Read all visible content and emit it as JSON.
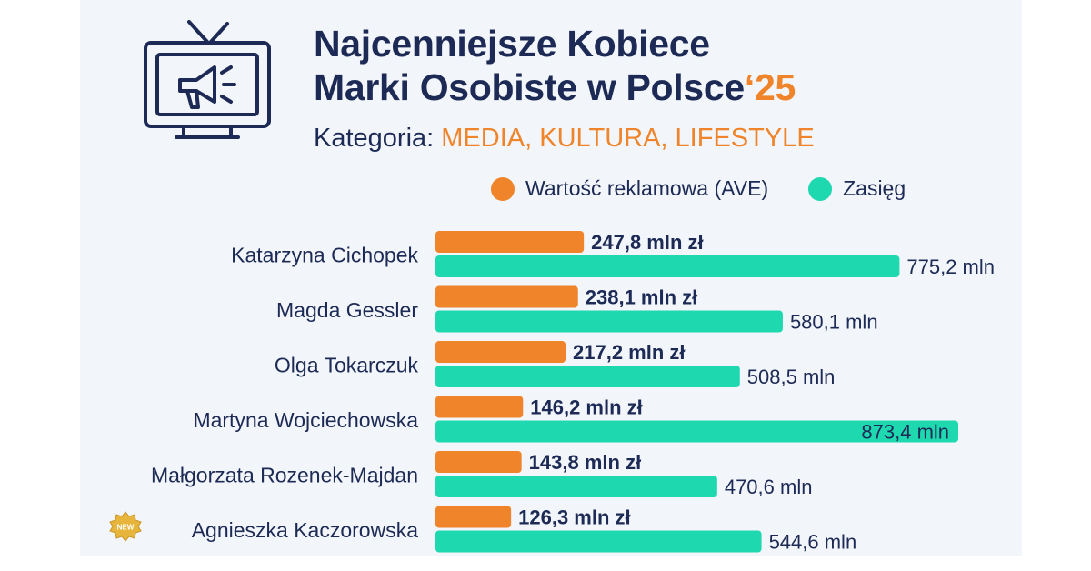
{
  "title": {
    "line1": "Najcenniejsze Kobiece",
    "line2": "Marki Osobiste w Polsce",
    "year": "‘25"
  },
  "subtitle": {
    "label": "Kategoria:",
    "category": "MEDIA, KULTURA, LIFESTYLE"
  },
  "icons": {
    "tv": "tv-megaphone-icon",
    "new_badge": "new-badge-icon"
  },
  "new_badge_text": "NEW",
  "colors": {
    "ave": "#f0842a",
    "reach": "#1ed8b0",
    "text": "#1c2a55",
    "background": "#f2f5f9"
  },
  "chart_data": {
    "type": "bar",
    "orientation": "horizontal",
    "title": "Najcenniejsze Kobiece Marki Osobiste w Polsce‘25",
    "subtitle": "Kategoria: MEDIA, KULTURA, LIFESTYLE",
    "legend_position": "top-right",
    "grid": false,
    "categories": [
      "Katarzyna Cichopek",
      "Magda Gessler",
      "Olga Tokarczuk",
      "Martyna Wojciechowska",
      "Małgorzata Rozenek-Majdan",
      "Agnieszka Kaczorowska"
    ],
    "new_entries": [
      "Agnieszka Kaczorowska"
    ],
    "series": [
      {
        "name": "Wartość reklamowa (AVE)",
        "color": "#f0842a",
        "unit": "mln zł",
        "values": [
          247.8,
          238.1,
          217.2,
          146.2,
          143.8,
          126.3
        ],
        "labels": [
          "247,8 mln zł",
          "238,1 mln zł",
          "217,2 mln zł",
          "146,2 mln zł",
          "143,8 mln zł",
          "126,3 mln zł"
        ]
      },
      {
        "name": "Zasięg",
        "color": "#1ed8b0",
        "unit": "mln",
        "values": [
          775.2,
          580.1,
          508.5,
          873.4,
          470.6,
          544.6
        ],
        "labels": [
          "775,2 mln",
          "580,1 mln",
          "508,5 mln",
          "873,4 mln",
          "470,6 mln",
          "544,6 mln"
        ]
      }
    ]
  }
}
